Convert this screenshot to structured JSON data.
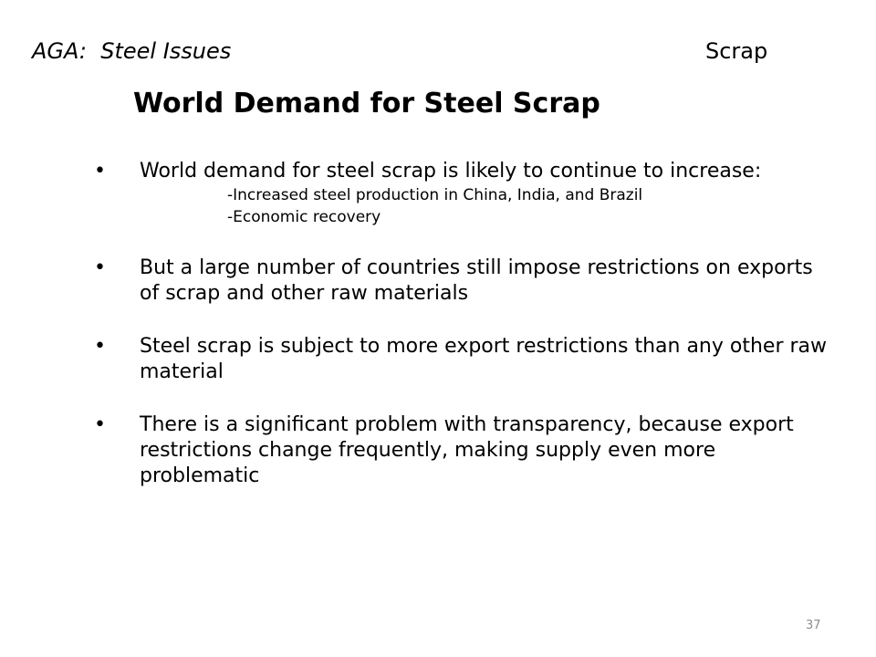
{
  "header": {
    "left": "AGA:  Steel Issues",
    "right": "Scrap"
  },
  "title": "World Demand for Steel Scrap",
  "bullets": [
    {
      "text": "World demand for steel scrap is likely to continue to increase:",
      "sub": [
        "-Increased steel production in China, India, and Brazil",
        "-Economic recovery"
      ]
    },
    {
      "text": "But a large number of countries still impose restrictions on exports of scrap and other raw materials"
    },
    {
      "text": "Steel scrap is subject to more export restrictions than any other raw material"
    },
    {
      "text": "There is a significant problem with transparency, because export restrictions change frequently, making supply even more problematic"
    }
  ],
  "page_number": "37",
  "bullet_symbol": "•"
}
